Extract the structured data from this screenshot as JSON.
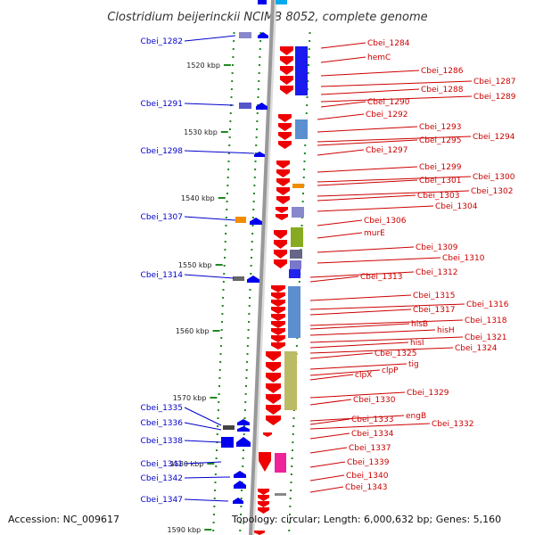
{
  "title": "Clostridium beijerinckii NCIMB 8052, complete genome",
  "accession": "Accession: NC_009617",
  "topology": "Topology: circular; Length: 6,000,632 bp; Genes: 5,160",
  "kbp_ticks": [
    "1520 kbp",
    "1530 kbp",
    "1540 kbp",
    "1550 kbp",
    "1560 kbp",
    "1570 kbp",
    "1580 kbp",
    "1590 kbp"
  ],
  "colors": {
    "left_label": "#0000cc",
    "right_label": "#cc0000",
    "backbone": "#999999",
    "dot": "#228822",
    "rev_arrow": "#ee0000",
    "fwd_arrow": "#0000ee"
  },
  "left_labels": [
    "Cbei_1282",
    "Cbei_1291",
    "Cbei_1298",
    "Cbei_1307",
    "Cbei_1314",
    "Cbei_1335",
    "Cbei_1336",
    "Cbei_1338",
    "Cbei_1341",
    "Cbei_1342",
    "Cbei_1347"
  ],
  "right_labels": [
    "Cbei_1284",
    "hemC",
    "Cbei_1286",
    "Cbei_1287",
    "Cbei_1288",
    "Cbei_1289",
    "Cbei_1290",
    "Cbei_1292",
    "Cbei_1293",
    "Cbei_1294",
    "Cbei_1295",
    "Cbei_1297",
    "Cbei_1299",
    "Cbei_1300",
    "Cbei_1301",
    "Cbei_1302",
    "Cbei_1303",
    "Cbei_1304",
    "Cbei_1306",
    "murE",
    "Cbei_1309",
    "Cbei_1310",
    "Cbei_1312",
    "Cbei_1313",
    "Cbei_1315",
    "Cbei_1316",
    "Cbei_1317",
    "Cbei_1318",
    "hisB",
    "hisH",
    "Cbei_1321",
    "hisI",
    "Cbei_1324",
    "Cbei_1325",
    "tig",
    "clpP",
    "clpX",
    "Cbei_1329",
    "Cbei_1330",
    "engB",
    "Cbei_1333",
    "Cbei_1332",
    "Cbei_1334",
    "Cbei_1337",
    "Cbei_1339",
    "Cbei_1340",
    "Cbei_1343"
  ]
}
